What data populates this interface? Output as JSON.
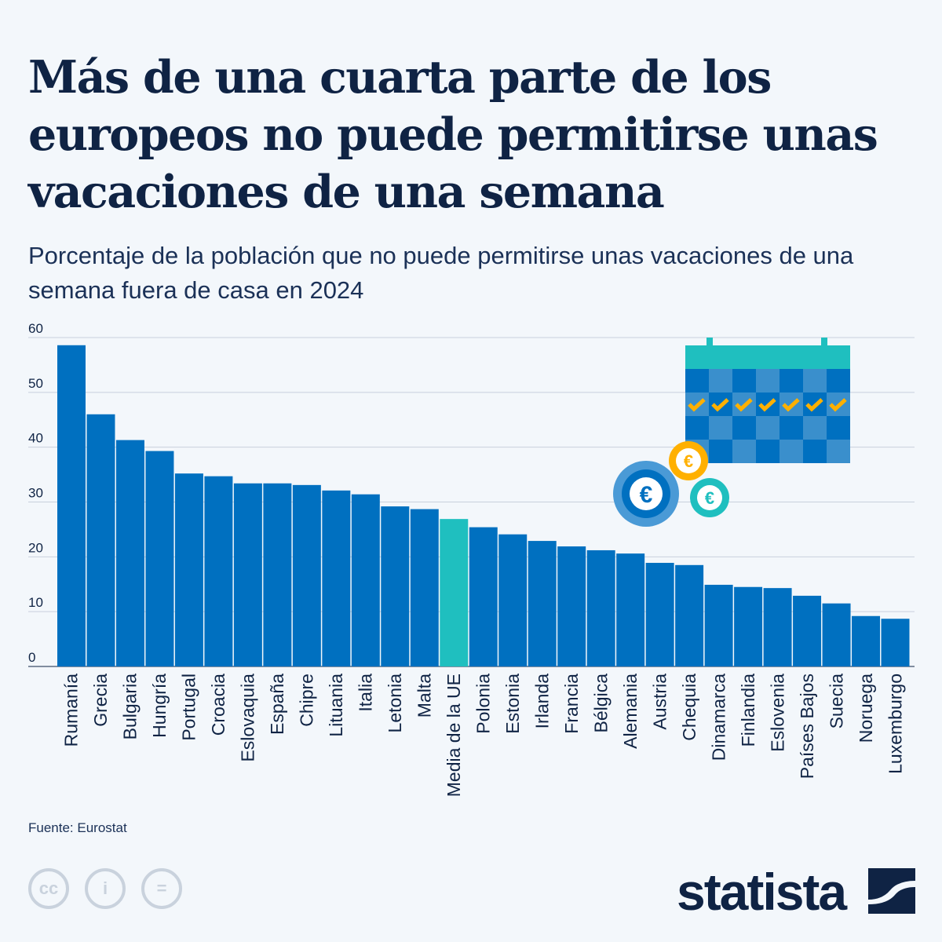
{
  "title": "Más de una cuarta parte de los europeos no puede permitirse unas vacaciones de una semana",
  "subtitle": "Porcentaje de la población que no puede permitirse unas vacaciones de una semana fuera de casa en 2024",
  "source": "Fuente: Eurostat",
  "brand": "statista",
  "colors": {
    "bar": "#0070c0",
    "highlight": "#1fbfbf",
    "grid": "#c8d0dc",
    "text": "#0f2344"
  },
  "icons": [
    "calendar-icon",
    "euro-coin-icon",
    "cc-license-icon",
    "attribution-icon",
    "no-derivatives-icon",
    "statista-logo-icon"
  ],
  "chart_data": {
    "type": "bar",
    "title": "",
    "xlabel": "",
    "ylabel": "",
    "ylim": [
      0,
      60
    ],
    "yticks": [
      0,
      10,
      20,
      30,
      40,
      50,
      60
    ],
    "grid": true,
    "categories": [
      "Rumanía",
      "Grecia",
      "Bulgaria",
      "Hungría",
      "Portugal",
      "Croacia",
      "Eslovaquia",
      "España",
      "Chipre",
      "Lituania",
      "Italia",
      "Letonia",
      "Malta",
      "Media de la UE",
      "Polonia",
      "Estonia",
      "Irlanda",
      "Francia",
      "Bélgica",
      "Alemania",
      "Austria",
      "Chequia",
      "Dinamarca",
      "Finlandia",
      "Eslovenia",
      "Países Bajos",
      "Suecia",
      "Noruega",
      "Luxemburgo"
    ],
    "values": [
      58.6,
      46.0,
      41.3,
      39.3,
      35.2,
      34.7,
      33.4,
      33.4,
      33.1,
      32.1,
      31.4,
      29.2,
      28.7,
      26.9,
      25.4,
      24.1,
      22.9,
      21.9,
      21.2,
      20.6,
      18.9,
      18.5,
      14.9,
      14.5,
      14.3,
      12.9,
      11.5,
      9.2,
      8.7
    ],
    "highlight": "Media de la UE"
  }
}
